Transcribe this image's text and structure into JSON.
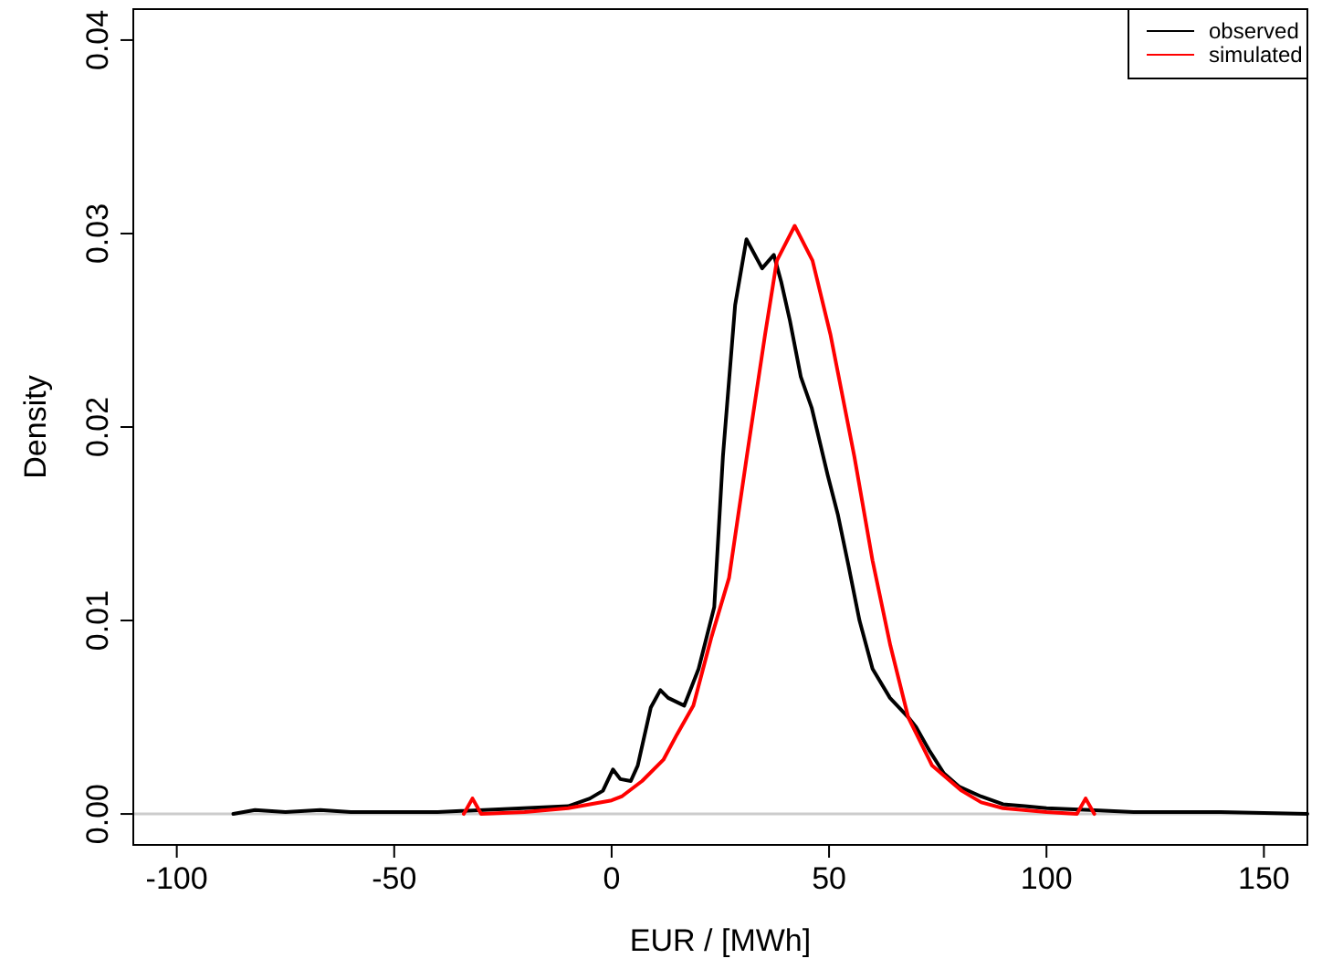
{
  "chart_data": {
    "type": "line",
    "xlabel": "EUR / [MWh]",
    "ylabel": "Density",
    "xlim": [
      -110,
      160
    ],
    "ylim": [
      -0.0016,
      0.0416
    ],
    "xticks": [
      -100,
      -50,
      0,
      50,
      100,
      150
    ],
    "yticks": [
      {
        "value": 0,
        "label": "0.00"
      },
      {
        "value": 0.01,
        "label": "0.01"
      },
      {
        "value": 0.02,
        "label": "0.02"
      },
      {
        "value": 0.03,
        "label": "0.03"
      },
      {
        "value": 0.04,
        "label": "0.04"
      }
    ],
    "grid": false,
    "legend": "top right",
    "line_style": "solid",
    "marker": "none",
    "ref_lines": [
      {
        "axis": "y",
        "value": 0,
        "color": "#cccccc"
      }
    ],
    "series": [
      {
        "name": "observed",
        "color": "#000000",
        "x": [
          -87,
          -82,
          -75,
          -67,
          -60,
          -40,
          -10,
          -5,
          -2,
          0.3,
          2,
          4.4,
          6,
          9,
          11.2,
          13,
          16.7,
          20,
          23.6,
          25.6,
          28.4,
          31,
          34.6,
          37.3,
          39,
          41,
          43.5,
          46,
          49.7,
          52,
          54.5,
          57,
          60,
          64,
          68.2,
          70,
          73,
          76.4,
          80,
          85,
          90,
          95,
          100,
          110,
          120,
          140,
          160
        ],
        "values": [
          0,
          0.0002,
          0.0001,
          0.0002,
          0.0001,
          0.0001,
          0.0004,
          0.0008,
          0.0012,
          0.0023,
          0.0018,
          0.0017,
          0.0025,
          0.0055,
          0.0064,
          0.006,
          0.0056,
          0.0075,
          0.0107,
          0.0185,
          0.0263,
          0.0297,
          0.0282,
          0.0289,
          0.0275,
          0.0255,
          0.0226,
          0.021,
          0.0175,
          0.0155,
          0.0128,
          0.01,
          0.0075,
          0.006,
          0.005,
          0.0045,
          0.0033,
          0.0021,
          0.0014,
          0.0009,
          0.0005,
          0.0004,
          0.0003,
          0.0002,
          0.0001,
          0.0001,
          0
        ]
      },
      {
        "name": "simulated",
        "color": "#ff0000",
        "x": [
          -34,
          -32,
          -30,
          -20,
          -10,
          -5,
          0,
          2.3,
          7,
          11.9,
          15,
          18.8,
          22.9,
          27,
          31.1,
          35.3,
          38,
          42.1,
          46.2,
          50.3,
          55.8,
          60,
          64.1,
          68.2,
          73.7,
          80.5,
          85,
          90,
          100,
          107,
          109,
          111
        ],
        "values": [
          0,
          0.0008,
          0,
          0.0001,
          0.0003,
          0.0005,
          0.0007,
          0.0009,
          0.0017,
          0.0028,
          0.0041,
          0.0056,
          0.0091,
          0.0122,
          0.0185,
          0.0248,
          0.0286,
          0.0304,
          0.0286,
          0.0248,
          0.0185,
          0.0131,
          0.0087,
          0.005,
          0.0025,
          0.0012,
          0.0006,
          0.0003,
          0.0001,
          0,
          0.0008,
          0
        ]
      }
    ]
  }
}
